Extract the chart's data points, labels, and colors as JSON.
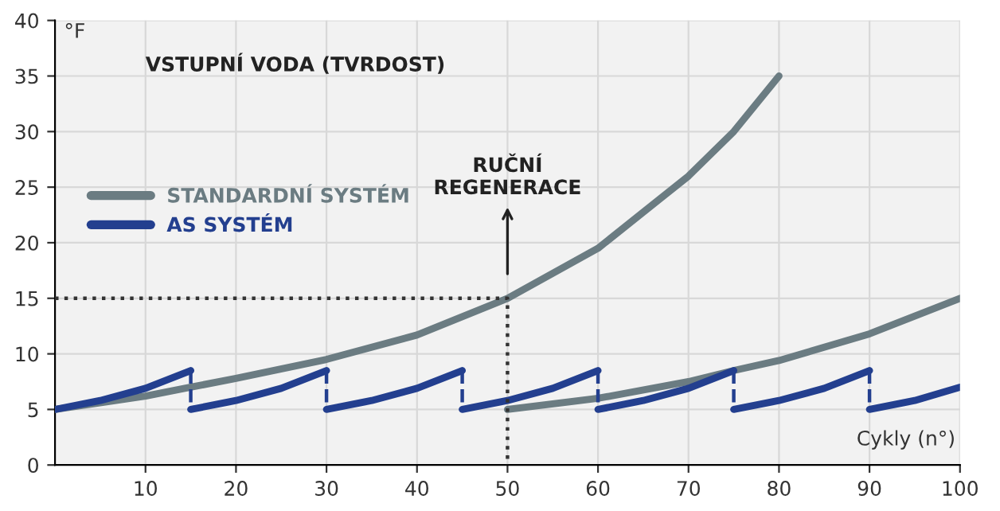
{
  "chart_data": {
    "type": "line",
    "xlabel": "Cykly (n°)",
    "ylabel": "°F",
    "annotations": [
      "VSTUPNÍ VODA (TVRDOST)",
      "RUČNÍ\nREGENERACE"
    ],
    "series": [
      {
        "name": "STANDARDNÍ SYSTÉM",
        "color": "#6b7c82",
        "x": [
          0,
          10,
          15,
          20,
          30,
          40,
          50,
          60,
          70,
          75,
          80
        ],
        "values": [
          5,
          6.2,
          7,
          7.8,
          9.5,
          11.7,
          15,
          19.5,
          26,
          30,
          35
        ]
      },
      {
        "color": "#6b7c82",
        "x": [
          50,
          60,
          70,
          75,
          80,
          90,
          100
        ],
        "values": [
          5,
          6,
          7.5,
          8.5,
          9.4,
          11.8,
          15
        ]
      },
      {
        "name": "AS SYSTÉM",
        "color": "#233f8f",
        "x": [
          0,
          5,
          10,
          15
        ],
        "values": [
          5,
          5.8,
          6.9,
          8.5
        ]
      },
      {
        "color": "#233f8f",
        "x": [
          15,
          20,
          25,
          30
        ],
        "values": [
          5,
          5.8,
          6.9,
          8.5
        ]
      },
      {
        "color": "#233f8f",
        "x": [
          30,
          35,
          40,
          45
        ],
        "values": [
          5,
          5.8,
          6.9,
          8.5
        ]
      },
      {
        "color": "#233f8f",
        "x": [
          45,
          50,
          55,
          60
        ],
        "values": [
          5,
          5.8,
          6.9,
          8.5
        ]
      },
      {
        "color": "#233f8f",
        "x": [
          60,
          65,
          70,
          75
        ],
        "values": [
          5,
          5.8,
          6.9,
          8.5
        ]
      },
      {
        "color": "#233f8f",
        "x": [
          75,
          80,
          85,
          90
        ],
        "values": [
          5,
          5.8,
          6.9,
          8.5
        ]
      },
      {
        "color": "#233f8f",
        "x": [
          90,
          95,
          100
        ],
        "values": [
          5,
          5.8,
          7
        ]
      },
      {
        "color": "#233f8f",
        "line_style": "dashed",
        "x": [
          15,
          15
        ],
        "values": [
          8.5,
          5
        ]
      },
      {
        "color": "#233f8f",
        "line_style": "dashed",
        "x": [
          30,
          30
        ],
        "values": [
          8.5,
          5
        ]
      },
      {
        "color": "#233f8f",
        "line_style": "dashed",
        "x": [
          45,
          45
        ],
        "values": [
          8.5,
          5
        ]
      },
      {
        "color": "#233f8f",
        "line_style": "dashed",
        "x": [
          60,
          60
        ],
        "values": [
          8.5,
          5
        ]
      },
      {
        "color": "#233f8f",
        "line_style": "dashed",
        "x": [
          75,
          75
        ],
        "values": [
          8.5,
          5
        ]
      },
      {
        "color": "#233f8f",
        "line_style": "dashed",
        "x": [
          90,
          90
        ],
        "values": [
          8.5,
          5
        ]
      },
      {
        "color": "#333333",
        "line_style": "dotted",
        "x": [
          0,
          50,
          50
        ],
        "values": [
          15,
          15,
          0
        ]
      }
    ],
    "xlim": [
      0,
      100
    ],
    "xticks": [
      10,
      20,
      30,
      40,
      50,
      60,
      70,
      80,
      90,
      100
    ],
    "ylim": [
      0,
      40
    ],
    "yticks": [
      0,
      5,
      10,
      15,
      20,
      25,
      30,
      35,
      40
    ],
    "grid": true,
    "legend": "center left"
  }
}
